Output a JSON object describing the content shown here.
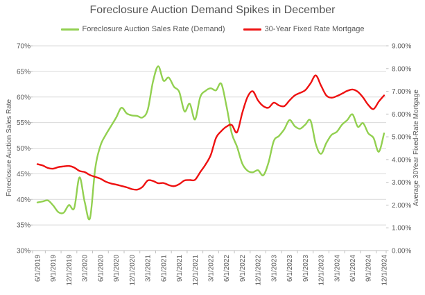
{
  "title": "Foreclosure Auction Demand Spikes in December",
  "legend": [
    {
      "label": "Foreclosure Auction Sales Rate (Demand)",
      "color": "#92D050"
    },
    {
      "label": "30-Year Fixed Rate Mortgage",
      "color": "#EE1111"
    }
  ],
  "left_axis": {
    "title": "Foreclosure Auction Sales Rate",
    "tick_labels": [
      "70%",
      "65%",
      "60%",
      "55%",
      "50%",
      "45%",
      "40%",
      "35%",
      "30%"
    ],
    "min": 30,
    "max": 70
  },
  "right_axis": {
    "title": "Average 30Year Fixed-Rate Mortgage",
    "tick_labels": [
      "9.00%",
      "8.00%",
      "7.00%",
      "6.00%",
      "5.00%",
      "4.00%",
      "3.00%",
      "2.00%",
      "1.00%",
      "0.00%"
    ],
    "min": 0,
    "max": 9
  },
  "x_axis": {
    "tick_labels": [
      "6/1/2019",
      "9/1/2019",
      "12/1/2019",
      "3/1/2020",
      "6/1/2020",
      "9/1/2020",
      "12/1/2020",
      "3/1/2021",
      "6/1/2021",
      "9/1/2021",
      "12/1/2021",
      "3/1/2022",
      "6/1/2022",
      "9/1/2022",
      "12/1/2022",
      "3/1/2023",
      "6/1/2023",
      "9/1/2023",
      "12/1/2023",
      "3/1/2024",
      "6/1/2024",
      "9/1/2024",
      "12/1/2024"
    ]
  },
  "colors": {
    "gridline": "#D9D9D9",
    "axis_line": "#BFBFBF",
    "tick_text": "#595959",
    "title_text": "#545454"
  },
  "chart_data": {
    "type": "line",
    "title": "Foreclosure Auction Demand Spikes in December",
    "x": [
      "6/1/2019",
      "7/1/2019",
      "8/1/2019",
      "9/1/2019",
      "10/1/2019",
      "11/1/2019",
      "12/1/2019",
      "1/1/2020",
      "2/1/2020",
      "3/1/2020",
      "4/1/2020",
      "5/1/2020",
      "6/1/2020",
      "7/1/2020",
      "8/1/2020",
      "9/1/2020",
      "10/1/2020",
      "11/1/2020",
      "12/1/2020",
      "1/1/2021",
      "2/1/2021",
      "3/1/2021",
      "4/1/2021",
      "5/1/2021",
      "6/1/2021",
      "7/1/2021",
      "8/1/2021",
      "9/1/2021",
      "10/1/2021",
      "11/1/2021",
      "12/1/2021",
      "1/1/2022",
      "2/1/2022",
      "3/1/2022",
      "4/1/2022",
      "5/1/2022",
      "6/1/2022",
      "7/1/2022",
      "8/1/2022",
      "9/1/2022",
      "10/1/2022",
      "11/1/2022",
      "12/1/2022",
      "1/1/2023",
      "2/1/2023",
      "3/1/2023",
      "4/1/2023",
      "5/1/2023",
      "6/1/2023",
      "7/1/2023",
      "8/1/2023",
      "9/1/2023",
      "10/1/2023",
      "11/1/2023",
      "12/1/2023",
      "1/1/2024",
      "2/1/2024",
      "3/1/2024",
      "4/1/2024",
      "5/1/2024",
      "6/1/2024",
      "7/1/2024",
      "8/1/2024",
      "9/1/2024",
      "10/1/2024",
      "11/1/2024",
      "12/1/2024"
    ],
    "series": [
      {
        "name": "Foreclosure Auction Sales Rate (Demand)",
        "axis": "left",
        "unit": "%",
        "color": "#92D050",
        "values": [
          39.4,
          39.6,
          39.8,
          38.8,
          37.5,
          37.4,
          38.9,
          38.3,
          44.3,
          39.5,
          36.3,
          46.0,
          50.5,
          52.6,
          54.3,
          56.0,
          57.9,
          56.8,
          56.4,
          56.3,
          56.0,
          57.5,
          63.0,
          66.0,
          63.2,
          63.8,
          62.0,
          61.0,
          57.2,
          58.7,
          55.6,
          60.0,
          61.2,
          61.7,
          61.3,
          62.6,
          58.2,
          52.9,
          50.3,
          47.0,
          45.6,
          45.3,
          45.7,
          44.7,
          47.2,
          51.4,
          52.4,
          53.7,
          55.5,
          54.3,
          53.8,
          54.6,
          55.4,
          50.8,
          48.9,
          51.0,
          52.6,
          53.2,
          54.6,
          55.5,
          56.6,
          54.2,
          54.9,
          52.9,
          52.0,
          49.3,
          52.9
        ]
      },
      {
        "name": "30-Year Fixed Rate Mortgage",
        "axis": "right",
        "unit": "%",
        "color": "#EE1111",
        "values": [
          3.8,
          3.74,
          3.63,
          3.6,
          3.67,
          3.7,
          3.72,
          3.65,
          3.5,
          3.45,
          3.32,
          3.24,
          3.16,
          3.03,
          2.95,
          2.9,
          2.84,
          2.78,
          2.7,
          2.68,
          2.8,
          3.08,
          3.06,
          2.96,
          2.97,
          2.88,
          2.83,
          2.92,
          3.08,
          3.1,
          3.11,
          3.45,
          3.78,
          4.2,
          4.95,
          5.25,
          5.45,
          5.52,
          5.2,
          6.05,
          6.75,
          7.0,
          6.6,
          6.35,
          6.28,
          6.5,
          6.38,
          6.35,
          6.6,
          6.82,
          6.93,
          7.05,
          7.35,
          7.7,
          7.25,
          6.82,
          6.72,
          6.79,
          6.9,
          7.02,
          7.08,
          6.98,
          6.73,
          6.4,
          6.22,
          6.55,
          6.82
        ]
      }
    ],
    "left_ylim": [
      30,
      70
    ],
    "right_ylim": [
      0,
      9
    ],
    "grid": true,
    "smooth_lines": true,
    "legend_position": "top"
  }
}
